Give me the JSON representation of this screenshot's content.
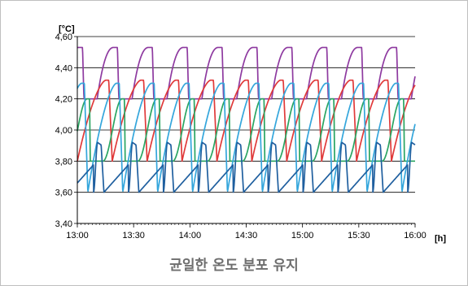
{
  "chart_data": {
    "type": "line",
    "ylabel": "[°C]",
    "xlabel": "[h]",
    "ylim": [
      3.4,
      4.6
    ],
    "xlim": [
      "13:00",
      "16:00"
    ],
    "yticks": [
      "3,40",
      "3,60",
      "3,80",
      "4,00",
      "4,20",
      "4,40",
      "4,60"
    ],
    "xticks": [
      "13:00",
      "13:30",
      "14:00",
      "14:30",
      "15:00",
      "15:30",
      "16:00"
    ],
    "grid": true,
    "legend": "none",
    "cycle_minutes": 18.6,
    "series": [
      {
        "color": "#8e3aa0",
        "min": 4.2,
        "max": 4.53,
        "phase_minutes": 9.5,
        "shape": "sharp-peak"
      },
      {
        "color": "#e03a3a",
        "min": 3.8,
        "max": 4.32,
        "phase_minutes": 0.0,
        "shape": "rise-drop"
      },
      {
        "color": "#2aa562",
        "min": 3.8,
        "max": 4.2,
        "phase_minutes": 5.0,
        "shape": "smooth"
      },
      {
        "color": "#34a6dc",
        "min": 3.6,
        "max": 4.3,
        "phase_minutes": 13.0,
        "shape": "rise-drop"
      },
      {
        "color": "#1f5f9f",
        "min": 3.6,
        "max": 3.92,
        "phase_minutes": 10.0,
        "shape": "spike-dip"
      }
    ]
  },
  "caption": "균일한 온도 분포 유지"
}
